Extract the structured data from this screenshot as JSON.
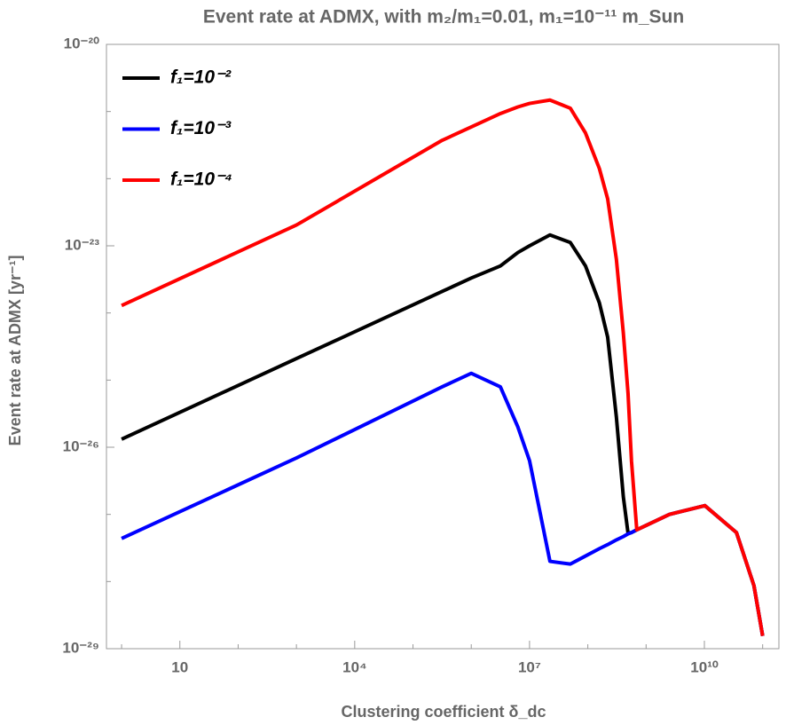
{
  "chart_data": {
    "type": "line",
    "title": "Event rate at ADMX, with m₂/m₁=0.01, m₁=10⁻¹¹ m_Sun",
    "xlabel": "Clustering coefficient δ_dc",
    "ylabel": "Event rate at ADMX [yr⁻¹]",
    "xscale": "log",
    "yscale": "log",
    "xlim": [
      0.55,
      190000000000.0
    ],
    "ylim": [
      1e-29,
      1e-20
    ],
    "xticks": [
      10,
      {
        "value": 10000,
        "label": "10⁴"
      },
      {
        "value": 10000000.0,
        "label": "10⁷"
      },
      {
        "value": 10000000000.0,
        "label": "10¹⁰"
      }
    ],
    "xminor": [
      1,
      100,
      1000,
      100000,
      1000000.0,
      100000000.0,
      1000000000.0,
      100000000000.0
    ],
    "yticks": [
      {
        "value": 1e-29,
        "label": "10⁻²⁹"
      },
      {
        "value": 1e-26,
        "label": "10⁻²⁶"
      },
      {
        "value": 1e-23,
        "label": "10⁻²³"
      },
      {
        "value": 1e-20,
        "label": "10⁻²⁰"
      }
    ],
    "yminor": [
      1e-28,
      1e-27,
      1e-25,
      1e-24,
      1e-22,
      1e-21
    ],
    "legend": "upper left",
    "x": [
      1,
      1000,
      316000,
      1000000.0,
      3160000.0,
      6310000.0,
      10000000.0,
      22400000.0,
      50100000.0,
      91200000.0,
      158000000.0,
      219000000.0,
      309000000.0,
      407000000.0,
      490000000.0,
      562000000.0,
      692000000.0,
      2510000000.0,
      10200000000.0,
      35500000000.0,
      70800000000.0,
      100000000000.0
    ],
    "series": [
      {
        "name": "f₁=10⁻²",
        "color": "#000000",
        "values": [
          1.32e-26,
          2.09e-25,
          2.09e-24,
          3.31e-24,
          5.01e-24,
          7.94e-24,
          1e-23,
          1.45e-23,
          1.12e-23,
          5.01e-24,
          1.41e-24,
          4.37e-25,
          2.82e-26,
          1.82e-27,
          5.25e-28,
          5.37e-28,
          5.89e-28,
          1e-27,
          1.35e-27,
          5.37e-28,
          8.71e-29,
          1.55e-29
        ]
      },
      {
        "name": "f₁=10⁻³",
        "color": "#0000ff",
        "values": [
          4.37e-28,
          6.92e-27,
          7.94e-26,
          1.26e-25,
          7.94e-26,
          2e-26,
          6.31e-27,
          2e-28,
          1.82e-28,
          2.4e-28,
          3.09e-28,
          3.55e-28,
          4.17e-28,
          4.68e-28,
          5.13e-28,
          5.37e-28,
          5.89e-28,
          1e-27,
          1.35e-27,
          5.37e-28,
          8.71e-29,
          1.55e-29
        ]
      },
      {
        "name": "f₁=10⁻⁴",
        "color": "#ff0000",
        "values": [
          1.29e-24,
          2.04e-23,
          3.72e-22,
          5.89e-22,
          9.33e-22,
          1.17e-21,
          1.32e-21,
          1.48e-21,
          1.12e-21,
          4.79e-22,
          1.41e-22,
          5.01e-23,
          6.31e-24,
          5.01e-25,
          6.31e-26,
          6.17e-27,
          5.89e-28,
          1e-27,
          1.35e-27,
          5.37e-28,
          8.71e-29,
          1.55e-29
        ]
      }
    ]
  }
}
